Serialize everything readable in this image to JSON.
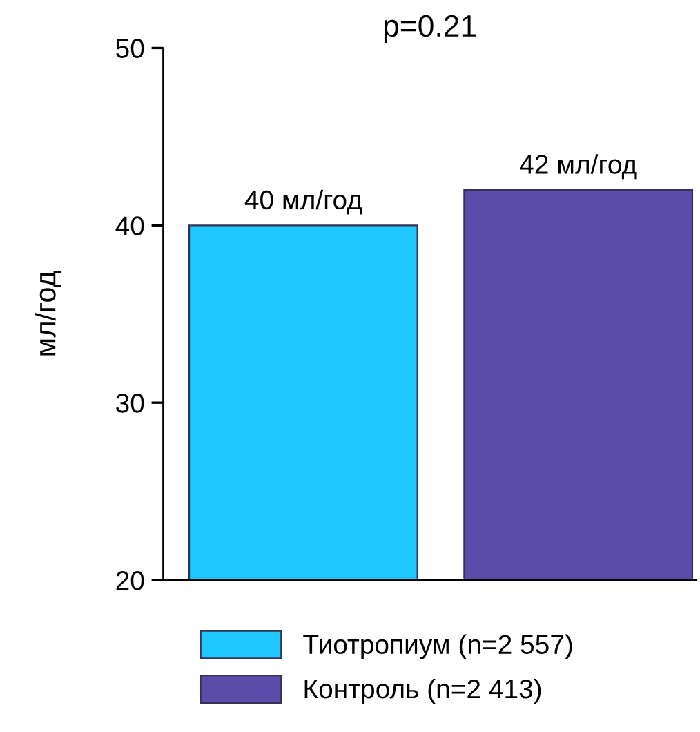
{
  "chart_data": {
    "type": "bar",
    "title": "p=0.21",
    "ylabel": "мл/год",
    "categories": [
      null,
      null
    ],
    "series": [
      {
        "name": "Тиотропиум (n=2 557)",
        "color": "#1ec8ff",
        "values": [
          40,
          null
        ],
        "value_labels": [
          "40 мл/год",
          null
        ]
      },
      {
        "name": "Контроль (n=2 413)",
        "color": "#5b4ca8",
        "values": [
          null,
          42
        ],
        "value_labels": [
          null,
          "42 мл/год"
        ]
      }
    ],
    "ylim": [
      20,
      50
    ],
    "yticks": [
      20,
      30,
      40,
      50
    ],
    "grid": false,
    "legend": "bottom",
    "tick_labels": "y"
  }
}
